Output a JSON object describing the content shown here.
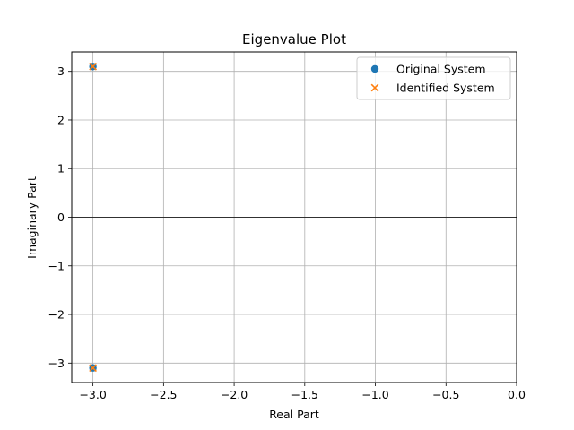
{
  "chart_data": {
    "type": "scatter",
    "title": "Eigenvalue Plot",
    "xlabel": "Real Part",
    "ylabel": "Imaginary Part",
    "xlim": [
      -3.15,
      0.0
    ],
    "ylim": [
      -3.4,
      3.4
    ],
    "xticks": [
      -3.0,
      -2.5,
      -2.0,
      -1.5,
      -1.0,
      -0.5,
      0.0
    ],
    "xtick_labels": [
      "−3.0",
      "−2.5",
      "−2.0",
      "−1.5",
      "−1.0",
      "−0.5",
      "0.0"
    ],
    "yticks": [
      -3,
      -2,
      -1,
      0,
      1,
      2,
      3
    ],
    "ytick_labels": [
      "−3",
      "−2",
      "−1",
      "0",
      "1",
      "2",
      "3"
    ],
    "grid": true,
    "zero_line": "y = 0",
    "legend_position": "top-right",
    "series": [
      {
        "name": "Original System",
        "marker": "circle",
        "color": "#1f77b4",
        "points": [
          [
            -3.0,
            3.1
          ],
          [
            -3.0,
            -3.1
          ]
        ]
      },
      {
        "name": "Identified System",
        "marker": "x",
        "color": "#ff7f0e",
        "points": [
          [
            -3.0,
            3.1
          ],
          [
            -3.0,
            -3.1
          ]
        ]
      }
    ]
  }
}
